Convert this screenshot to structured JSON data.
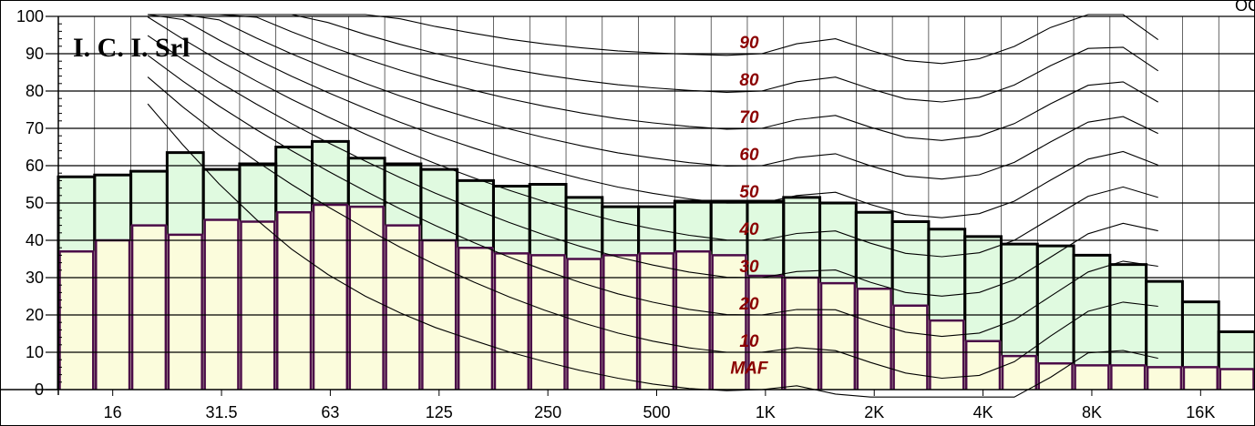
{
  "chart_data": {
    "type": "bar",
    "title": "",
    "xlabel": "",
    "ylabel": "",
    "ylim": [
      0,
      100
    ],
    "y_ticks": [
      "0",
      "10",
      "20",
      "30",
      "40",
      "50",
      "60",
      "70",
      "80",
      "90",
      "100"
    ],
    "x_tick_labels": [
      {
        "label": "16",
        "band": 1
      },
      {
        "label": "31.5",
        "band": 4
      },
      {
        "label": "63",
        "band": 7
      },
      {
        "label": "125",
        "band": 10
      },
      {
        "label": "250",
        "band": 13
      },
      {
        "label": "500",
        "band": 16
      },
      {
        "label": "1K",
        "band": 19
      },
      {
        "label": "2K",
        "band": 22
      },
      {
        "label": "4K",
        "band": 25
      },
      {
        "label": "8K",
        "band": 28
      },
      {
        "label": "16K",
        "band": 31
      }
    ],
    "band_count": 33,
    "grid": true,
    "series": [
      {
        "values": [
          57,
          57.5,
          58.5,
          63.5,
          59,
          60.5,
          65,
          66.5,
          62,
          60.5,
          59,
          56,
          54.5,
          55,
          51.5,
          49,
          49,
          50.5,
          50.5,
          50.5,
          51.5,
          50,
          47.5,
          45,
          43,
          41,
          39,
          38.5,
          36,
          33.5,
          29,
          23.5,
          15.5
        ]
      },
      {
        "values": [
          37,
          40,
          44,
          41.5,
          45.5,
          45,
          47.5,
          49.5,
          49,
          44,
          40,
          38,
          36.5,
          36,
          35,
          36,
          36.5,
          37,
          36,
          30.5,
          30,
          28.5,
          27,
          22.5,
          18.5,
          13,
          9,
          7,
          6.5,
          6.5,
          6,
          6,
          5.5
        ]
      }
    ],
    "phon_labels": [
      "90",
      "80",
      "70",
      "60",
      "50",
      "40",
      "30",
      "20",
      "10",
      "MAF"
    ],
    "phon_levels": [
      90,
      80,
      70,
      60,
      50,
      40,
      30,
      20,
      10,
      0
    ],
    "colors": {
      "upper_fill": "#e0fae0",
      "lower_fill": "#fbfcdc",
      "upper_edge": "#000000",
      "lower_edge": "#4b0c48",
      "phon_text": "#8b0000"
    }
  },
  "brand": "I. C. I. Srl",
  "corner_text": "OC"
}
